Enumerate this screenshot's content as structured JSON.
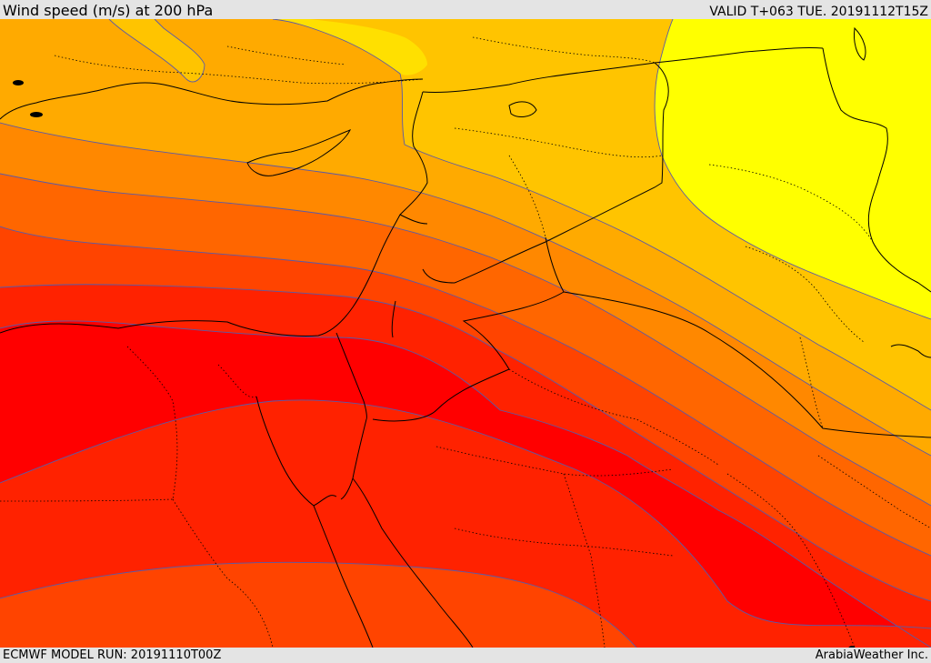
{
  "header": {
    "title": "Wind speed (m/s) at 200 hPa",
    "valid": "VALID T+063 TUE. 20191112T15Z"
  },
  "footer": {
    "model_run": "ECMWF MODEL RUN: 20191110T00Z",
    "credit": "ArabiaWeather Inc."
  },
  "map": {
    "colors": {
      "band_1": "#ffff00",
      "band_2": "#ffe000",
      "band_3": "#ffc400",
      "band_4": "#ffaa00",
      "band_5": "#ff8800",
      "band_6": "#ff6600",
      "band_7": "#ff4400",
      "band_8": "#ff2200",
      "band_9": "#ff0000",
      "contour": "#5a5aa8",
      "border": "#000000"
    }
  }
}
